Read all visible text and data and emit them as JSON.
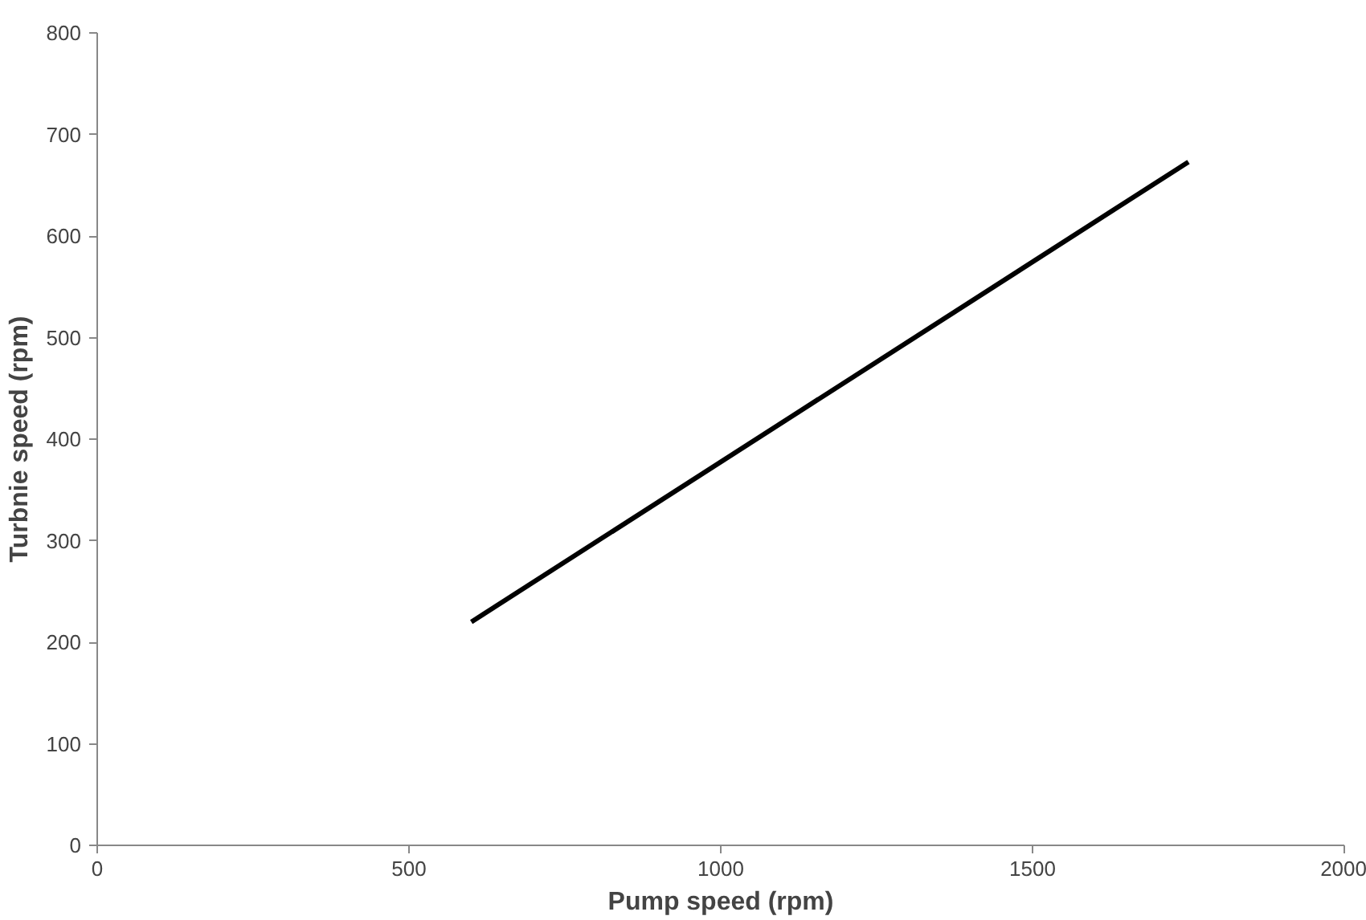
{
  "chart_data": {
    "type": "line",
    "xlabel": "Pump speed (rpm)",
    "ylabel": "Turbnie speed (rpm)",
    "x": [
      600,
      1750
    ],
    "series": [
      {
        "color": "#000000",
        "values": [
          220,
          673
        ]
      }
    ],
    "xlim": [
      0,
      2000
    ],
    "xticks": [
      0,
      500,
      1000,
      1500,
      2000
    ],
    "ylim": [
      0,
      800
    ],
    "yticks": [
      0,
      100,
      200,
      300,
      400,
      500,
      600,
      700,
      800
    ],
    "grid": false,
    "marker": "none",
    "line_style": "solid"
  }
}
